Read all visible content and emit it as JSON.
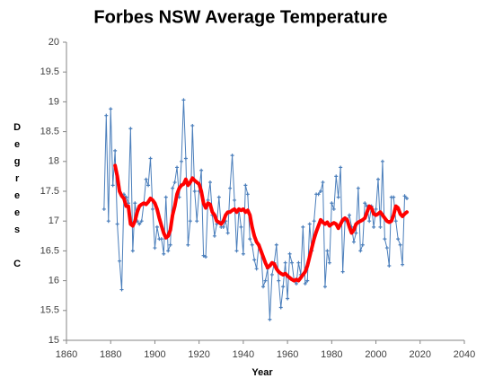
{
  "chart_data": {
    "type": "line",
    "title": "Forbes NSW Average Temperature",
    "xlabel": "Year",
    "ylabel": "Degrees C",
    "x": [
      1877,
      1878,
      1879,
      1880,
      1881,
      1882,
      1883,
      1884,
      1885,
      1886,
      1887,
      1888,
      1889,
      1890,
      1891,
      1892,
      1893,
      1894,
      1895,
      1896,
      1897,
      1898,
      1899,
      1900,
      1901,
      1902,
      1903,
      1904,
      1905,
      1906,
      1907,
      1908,
      1909,
      1910,
      1911,
      1912,
      1913,
      1914,
      1915,
      1916,
      1917,
      1918,
      1919,
      1920,
      1921,
      1922,
      1923,
      1924,
      1925,
      1926,
      1927,
      1928,
      1929,
      1930,
      1931,
      1932,
      1933,
      1934,
      1935,
      1936,
      1937,
      1938,
      1939,
      1940,
      1941,
      1942,
      1943,
      1944,
      1945,
      1946,
      1947,
      1948,
      1949,
      1950,
      1951,
      1952,
      1953,
      1954,
      1955,
      1956,
      1957,
      1958,
      1959,
      1960,
      1961,
      1962,
      1963,
      1964,
      1965,
      1966,
      1967,
      1968,
      1969,
      1970,
      1971,
      1972,
      1973,
      1974,
      1975,
      1976,
      1977,
      1978,
      1979,
      1980,
      1981,
      1982,
      1983,
      1984,
      1985,
      1986,
      1987,
      1988,
      1989,
      1990,
      1991,
      1992,
      1993,
      1994,
      1995,
      1996,
      1997,
      1998,
      1999,
      2000,
      2001,
      2002,
      2003,
      2004,
      2005,
      2006,
      2007,
      2008,
      2009,
      2010,
      2011,
      2012,
      2013,
      2014
    ],
    "series": [
      {
        "color": "#4a7ebb",
        "markers": true,
        "width": 1,
        "values": [
          17.2,
          18.77,
          17.0,
          18.88,
          17.6,
          18.18,
          16.95,
          16.33,
          15.85,
          17.45,
          17.4,
          17.3,
          18.55,
          16.5,
          17.3,
          17.0,
          16.95,
          17.0,
          17.3,
          17.7,
          17.6,
          18.05,
          17.2,
          16.55,
          16.9,
          16.7,
          16.7,
          16.45,
          17.4,
          16.5,
          16.6,
          17.55,
          17.65,
          17.9,
          17.4,
          18.0,
          19.03,
          18.05,
          16.6,
          17.0,
          18.6,
          17.5,
          17.0,
          17.5,
          17.85,
          16.42,
          16.4,
          17.35,
          17.65,
          17.1,
          16.75,
          16.95,
          17.4,
          16.9,
          16.9,
          17.0,
          16.8,
          17.55,
          18.1,
          17.35,
          16.5,
          17.2,
          16.9,
          16.45,
          17.6,
          17.45,
          16.7,
          16.6,
          16.35,
          16.2,
          16.6,
          16.5,
          15.9,
          16.0,
          16.2,
          15.35,
          16.1,
          16.3,
          16.6,
          16.0,
          15.55,
          15.9,
          16.3,
          15.7,
          16.45,
          16.3,
          16.0,
          15.95,
          16.3,
          16.1,
          16.9,
          15.95,
          16.0,
          16.95,
          16.5,
          17.0,
          17.45,
          17.45,
          17.5,
          17.65,
          15.9,
          16.5,
          16.3,
          17.3,
          17.2,
          17.75,
          17.4,
          17.9,
          16.15,
          17.0,
          17.0,
          17.1,
          16.9,
          16.65,
          16.8,
          17.55,
          16.5,
          16.6,
          17.3,
          17.25,
          17.0,
          17.25,
          16.9,
          17.2,
          17.7,
          16.9,
          18.0,
          16.7,
          16.55,
          16.25,
          17.4,
          17.4,
          17.0,
          16.7,
          16.6,
          16.27,
          17.42,
          17.38
        ]
      },
      {
        "color": "#ff0000",
        "markers": false,
        "width": 4,
        "values": [
          null,
          null,
          null,
          null,
          null,
          17.93,
          17.75,
          17.5,
          17.42,
          17.38,
          17.25,
          17.25,
          16.95,
          16.92,
          17.0,
          17.15,
          17.25,
          17.28,
          17.3,
          17.28,
          17.32,
          17.38,
          17.35,
          17.3,
          17.2,
          17.05,
          16.92,
          16.8,
          16.72,
          16.75,
          16.85,
          17.1,
          17.25,
          17.45,
          17.55,
          17.6,
          17.62,
          17.7,
          17.6,
          17.65,
          17.72,
          17.68,
          17.65,
          17.62,
          17.5,
          17.3,
          17.22,
          17.3,
          17.28,
          17.15,
          17.1,
          17.0,
          16.98,
          16.95,
          17.0,
          17.1,
          17.15,
          17.15,
          17.18,
          17.2,
          17.15,
          17.2,
          17.18,
          17.2,
          17.15,
          17.18,
          17.1,
          16.9,
          16.75,
          16.65,
          16.6,
          16.5,
          16.4,
          16.3,
          16.22,
          16.25,
          16.3,
          16.28,
          16.2,
          16.15,
          16.12,
          16.1,
          16.12,
          16.08,
          16.05,
          16.02,
          16.0,
          16.02,
          16.0,
          16.05,
          16.1,
          16.15,
          16.25,
          16.4,
          16.55,
          16.7,
          16.82,
          16.92,
          17.02,
          16.98,
          16.95,
          16.98,
          16.92,
          16.95,
          16.97,
          16.95,
          16.88,
          16.95,
          17.02,
          17.05,
          17.02,
          16.9,
          16.8,
          16.85,
          16.95,
          16.98,
          17.0,
          17.02,
          17.05,
          17.15,
          17.25,
          17.22,
          17.12,
          17.1,
          17.12,
          17.15,
          17.1,
          17.05,
          17.0,
          16.98,
          17.0,
          17.1,
          17.25,
          17.22,
          17.12,
          17.08,
          17.12,
          17.15
        ]
      }
    ],
    "xlim": [
      1860,
      2040
    ],
    "xticks": [
      1860,
      1880,
      1900,
      1920,
      1940,
      1960,
      1980,
      2000,
      2020,
      2040
    ],
    "ylim": [
      15,
      20
    ],
    "yticks": [
      15,
      15.5,
      16,
      16.5,
      17,
      17.5,
      18,
      18.5,
      19,
      19.5,
      20
    ],
    "grid": false
  }
}
